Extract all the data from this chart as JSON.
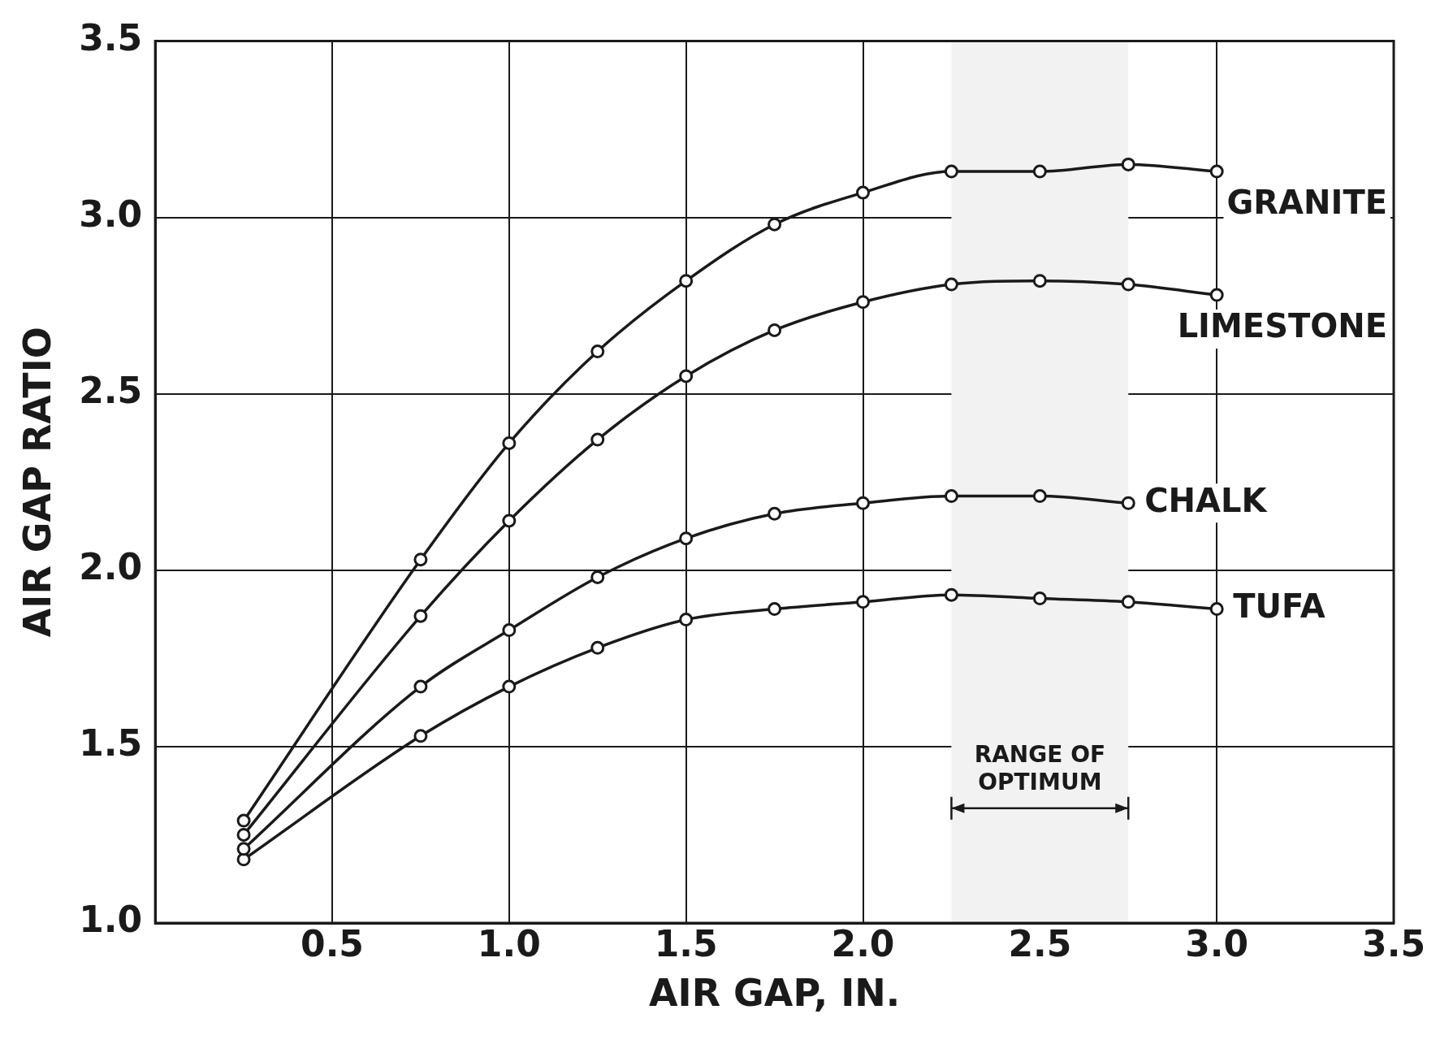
{
  "chart_data": {
    "type": "line",
    "xlabel": "AIR GAP, IN.",
    "ylabel": "AIR GAP RATIO",
    "x": [
      0.25,
      0.75,
      1.0,
      1.25,
      1.5,
      1.75,
      2.0,
      2.25,
      2.5,
      2.75,
      3.0
    ],
    "series": [
      {
        "name": "GRANITE",
        "color": "#1a1a1a",
        "values": [
          1.29,
          2.03,
          2.36,
          2.62,
          2.82,
          2.98,
          3.07,
          3.13,
          3.13,
          3.15,
          3.13
        ]
      },
      {
        "name": "LIMESTONE",
        "color": "#1a1a1a",
        "values": [
          1.25,
          1.87,
          2.14,
          2.37,
          2.55,
          2.68,
          2.76,
          2.81,
          2.82,
          2.81,
          2.78
        ]
      },
      {
        "name": "CHALK",
        "color": "#1a1a1a",
        "values": [
          1.21,
          1.67,
          1.83,
          1.98,
          2.09,
          2.16,
          2.19,
          2.21,
          2.21,
          2.19,
          null
        ]
      },
      {
        "name": "TUFA",
        "color": "#1a1a1a",
        "values": [
          1.18,
          1.53,
          1.67,
          1.78,
          1.86,
          1.89,
          1.91,
          1.93,
          1.92,
          1.91,
          1.89
        ]
      }
    ],
    "xlim": [
      0,
      3.5
    ],
    "ylim": [
      1,
      3.5
    ],
    "xticks": [
      {
        "value": 0.5,
        "label": "0.5"
      },
      {
        "value": 1,
        "label": "1.0"
      },
      {
        "value": 1.5,
        "label": "1.5"
      },
      {
        "value": 2,
        "label": "2.0"
      },
      {
        "value": 2.5,
        "label": "2.5"
      },
      {
        "value": 3,
        "label": "3.0"
      },
      {
        "value": 3.5,
        "label": "3.5"
      }
    ],
    "yticks": [
      {
        "value": 1,
        "label": "1.0"
      },
      {
        "value": 1.5,
        "label": "1.5"
      },
      {
        "value": 2,
        "label": "2.0"
      },
      {
        "value": 2.5,
        "label": "2.5"
      },
      {
        "value": 3,
        "label": "3.0"
      },
      {
        "value": 3.5,
        "label": "3.5"
      }
    ],
    "bands": [
      {
        "axis": "x",
        "from": 2.25,
        "to": 2.75,
        "label": "RANGE OF OPTIMUM",
        "color": "#f2f2f2"
      }
    ],
    "grid": true,
    "legend": false,
    "marker": "circle",
    "line_style": "solid"
  }
}
